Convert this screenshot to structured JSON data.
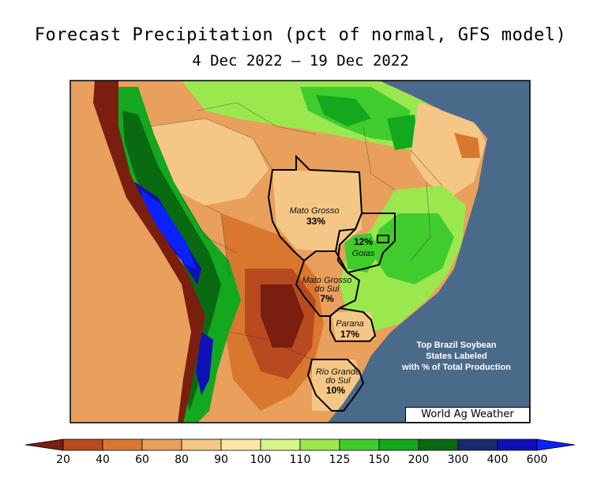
{
  "title": "Forecast Precipitation (pct of normal, GFS model)",
  "subtitle": "4 Dec 2022 – 19 Dec 2022",
  "credit": "World Ag Weather",
  "note_lines": [
    "Top Brazil Soybean",
    "States Labeled",
    "with % of Total Production"
  ],
  "states": [
    {
      "name": "Mato Grosso",
      "pct": "33%"
    },
    {
      "name": "Goias",
      "pct": "12%"
    },
    {
      "name_lines": [
        "Mato Grosso",
        "do Sul"
      ],
      "pct": "7%"
    },
    {
      "name": "Parana",
      "pct": "17%"
    },
    {
      "name_lines": [
        "Rio Grande",
        "do Sul"
      ],
      "pct": "10%"
    }
  ],
  "legend": {
    "ticks": [
      "20",
      "40",
      "60",
      "80",
      "90",
      "100",
      "110",
      "125",
      "150",
      "200",
      "300",
      "400",
      "600"
    ],
    "colors": [
      "#7a1e10",
      "#b84a20",
      "#d9772e",
      "#e8a05c",
      "#f5c787",
      "#fde7a8",
      "#d6f58a",
      "#9be84e",
      "#40cc2c",
      "#13a81e",
      "#0a6a12",
      "#1a2a6e",
      "#1010b8",
      "#0a22ff"
    ]
  },
  "colors": {
    "ocean": "#4a6a8a",
    "outline": "#000000"
  }
}
